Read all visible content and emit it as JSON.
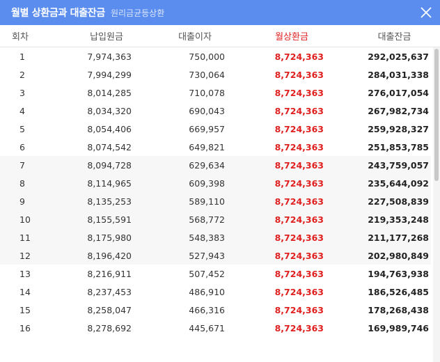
{
  "header": {
    "title": "월별 상환금과 대출잔금",
    "subtitle": "원리금균등상환"
  },
  "columns": [
    "회차",
    "납입원금",
    "대출이자",
    "월상환금",
    "대출잔금"
  ],
  "rows": [
    [
      "1",
      "7,974,363",
      "750,000",
      "8,724,363",
      "292,025,637"
    ],
    [
      "2",
      "7,994,299",
      "730,064",
      "8,724,363",
      "284,031,338"
    ],
    [
      "3",
      "8,014,285",
      "710,078",
      "8,724,363",
      "276,017,054"
    ],
    [
      "4",
      "8,034,320",
      "690,043",
      "8,724,363",
      "267,982,734"
    ],
    [
      "5",
      "8,054,406",
      "669,957",
      "8,724,363",
      "259,928,327"
    ],
    [
      "6",
      "8,074,542",
      "649,821",
      "8,724,363",
      "251,853,785"
    ],
    [
      "7",
      "8,094,728",
      "629,634",
      "8,724,363",
      "243,759,057"
    ],
    [
      "8",
      "8,114,965",
      "609,398",
      "8,724,363",
      "235,644,092"
    ],
    [
      "9",
      "8,135,253",
      "589,110",
      "8,724,363",
      "227,508,839"
    ],
    [
      "10",
      "8,155,591",
      "568,772",
      "8,724,363",
      "219,353,248"
    ],
    [
      "11",
      "8,175,980",
      "548,383",
      "8,724,363",
      "211,177,268"
    ],
    [
      "12",
      "8,196,420",
      "527,943",
      "8,724,363",
      "202,980,849"
    ],
    [
      "13",
      "8,216,911",
      "507,452",
      "8,724,363",
      "194,763,938"
    ],
    [
      "14",
      "8,237,453",
      "486,910",
      "8,724,363",
      "186,526,485"
    ],
    [
      "15",
      "8,258,047",
      "466,316",
      "8,724,363",
      "178,268,438"
    ],
    [
      "16",
      "8,278,692",
      "445,671",
      "8,724,363",
      "169,989,746"
    ]
  ],
  "colors": {
    "header_bg": "#5b8def",
    "accent_red": "#e02020",
    "shade_row": "#f7f7f7"
  },
  "icons": {
    "close": "close-icon"
  }
}
